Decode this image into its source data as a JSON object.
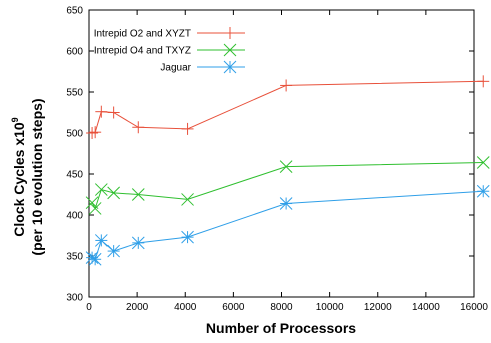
{
  "chart_data": {
    "type": "line",
    "title": "",
    "xlabel": "Number of Processors",
    "ylabel_line1": "Clock Cycles x10",
    "ylabel_sup": "9",
    "ylabel_line2": "(per 10 evolution steps)",
    "xlim": [
      0,
      16000
    ],
    "ylim": [
      300,
      650
    ],
    "xticks": [
      "0",
      "2000",
      "4000",
      "6000",
      "8000",
      "10000",
      "12000",
      "14000",
      "16000"
    ],
    "yticks": [
      "300",
      "350",
      "400",
      "450",
      "500",
      "550",
      "600",
      "650"
    ],
    "grid": false,
    "legend_position": "top-left",
    "series": [
      {
        "name": "Intrepid O2 and XYZT",
        "color": "#e8503a",
        "marker": "plus",
        "x": [
          128,
          256,
          512,
          1024,
          2048,
          4096,
          8192,
          16384
        ],
        "y": [
          500,
          501,
          526,
          525,
          507,
          505,
          558,
          563
        ]
      },
      {
        "name": "Intrepid O4 and TXYZ",
        "color": "#2fbf2f",
        "marker": "cross",
        "x": [
          128,
          256,
          512,
          1024,
          2048,
          4096,
          8192,
          16384
        ],
        "y": [
          415,
          408,
          431,
          427,
          425,
          419,
          459,
          464
        ]
      },
      {
        "name": "Jaguar",
        "color": "#2f9fe8",
        "marker": "star",
        "x": [
          128,
          256,
          512,
          1024,
          2048,
          4096,
          8192,
          16384
        ],
        "y": [
          348,
          346,
          369,
          356,
          366,
          373,
          414,
          429
        ]
      }
    ]
  }
}
